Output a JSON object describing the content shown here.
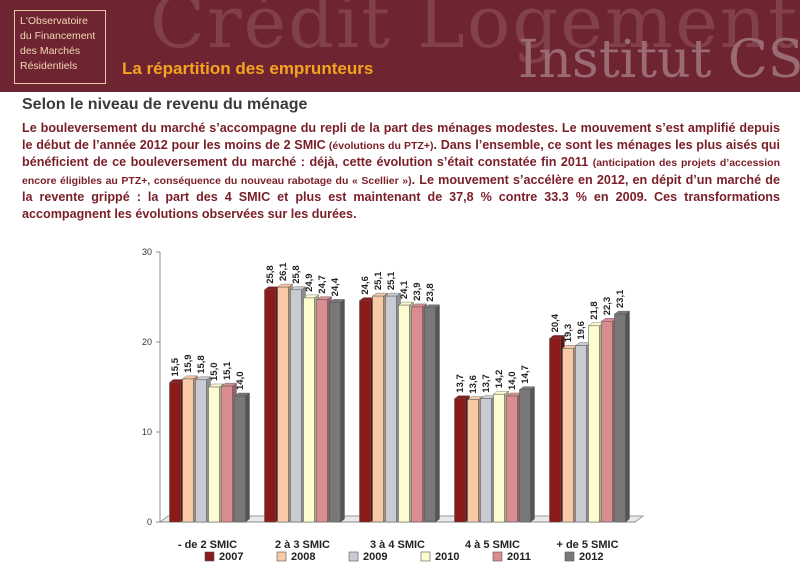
{
  "header": {
    "logo_lines": [
      "L'Observatoire",
      "du Financement",
      "des Marchés",
      "Résidentiels"
    ],
    "watermark_line1": "Crédit Logement",
    "watermark_line2": "Institut CSA",
    "title": "La répartition des emprunteurs"
  },
  "subtitle": "Selon le niveau de revenu du ménage",
  "paragraph": {
    "p1": "Le bouleversement du marché s’accompagne du repli de la part des ménages modestes. Le mouvement s’est amplifié depuis le début de l’année 2012 pour les moins de 2 SMIC",
    "p1_small": " (évolutions du PTZ+)",
    "p2": ". Dans l’ensemble, ce sont les ménages les plus aisés qui bénéficient de ce bouleversement du marché : déjà, cette évolution s’était constatée fin 2011 ",
    "p2_small": "(anticipation des projets d’accession encore éligibles au PTZ+, conséquence du nouveau rabotage du « Scellier »)",
    "p3": ". Le mouvement s’accélère en 2012, en dépit d’un marché de la revente grippé : la part des 4 SMIC et plus est maintenant de 37,8 % contre 33.3 % en 2009. Ces transformations accompagnent les évolutions observées sur les durées."
  },
  "colors": {
    "banner": "#6e2431",
    "title_accent": "#f6a31f",
    "paragraph_text": "#7a1e27"
  },
  "chart_data": {
    "type": "bar",
    "categories": [
      "- de 2 SMIC",
      "2 à 3 SMIC",
      "3 à 4 SMIC",
      "4 à 5 SMIC",
      "+ de 5 SMIC"
    ],
    "series": [
      {
        "name": "2007",
        "color": "#8b1a1a",
        "values": [
          15.5,
          25.8,
          24.6,
          13.7,
          20.4
        ],
        "labels": [
          "15,5",
          "25,8",
          "24,6",
          "13,7",
          "20,4"
        ]
      },
      {
        "name": "2008",
        "color": "#f7c9a6",
        "values": [
          15.9,
          26.1,
          25.1,
          13.6,
          19.3
        ],
        "labels": [
          "15,9",
          "26,1",
          "25,1",
          "13,6",
          "19,3"
        ]
      },
      {
        "name": "2009",
        "color": "#c9cbd3",
        "values": [
          15.8,
          25.8,
          25.1,
          13.7,
          19.6
        ],
        "labels": [
          "15,8",
          "25,8",
          "25,1",
          "13,7",
          "19,6"
        ]
      },
      {
        "name": "2010",
        "color": "#fcfccf",
        "values": [
          15.0,
          24.9,
          24.1,
          14.2,
          21.8
        ],
        "labels": [
          "15,0",
          "24,9",
          "24,1",
          "14,2",
          "21,8"
        ]
      },
      {
        "name": "2011",
        "color": "#d98d91",
        "values": [
          15.1,
          24.7,
          23.9,
          14.0,
          22.3
        ],
        "labels": [
          "15,1",
          "24,7",
          "23,9",
          "14,0",
          "22,3"
        ]
      },
      {
        "name": "2012",
        "color": "#787878",
        "values": [
          14.0,
          24.4,
          23.8,
          14.7,
          23.1
        ],
        "labels": [
          "14,0",
          "24,4",
          "23,8",
          "14,7",
          "23,1"
        ]
      }
    ],
    "ylim": [
      0,
      30
    ],
    "yticks": [
      "0",
      "10",
      "20",
      "30"
    ],
    "grid": false,
    "legend": "bottom"
  }
}
